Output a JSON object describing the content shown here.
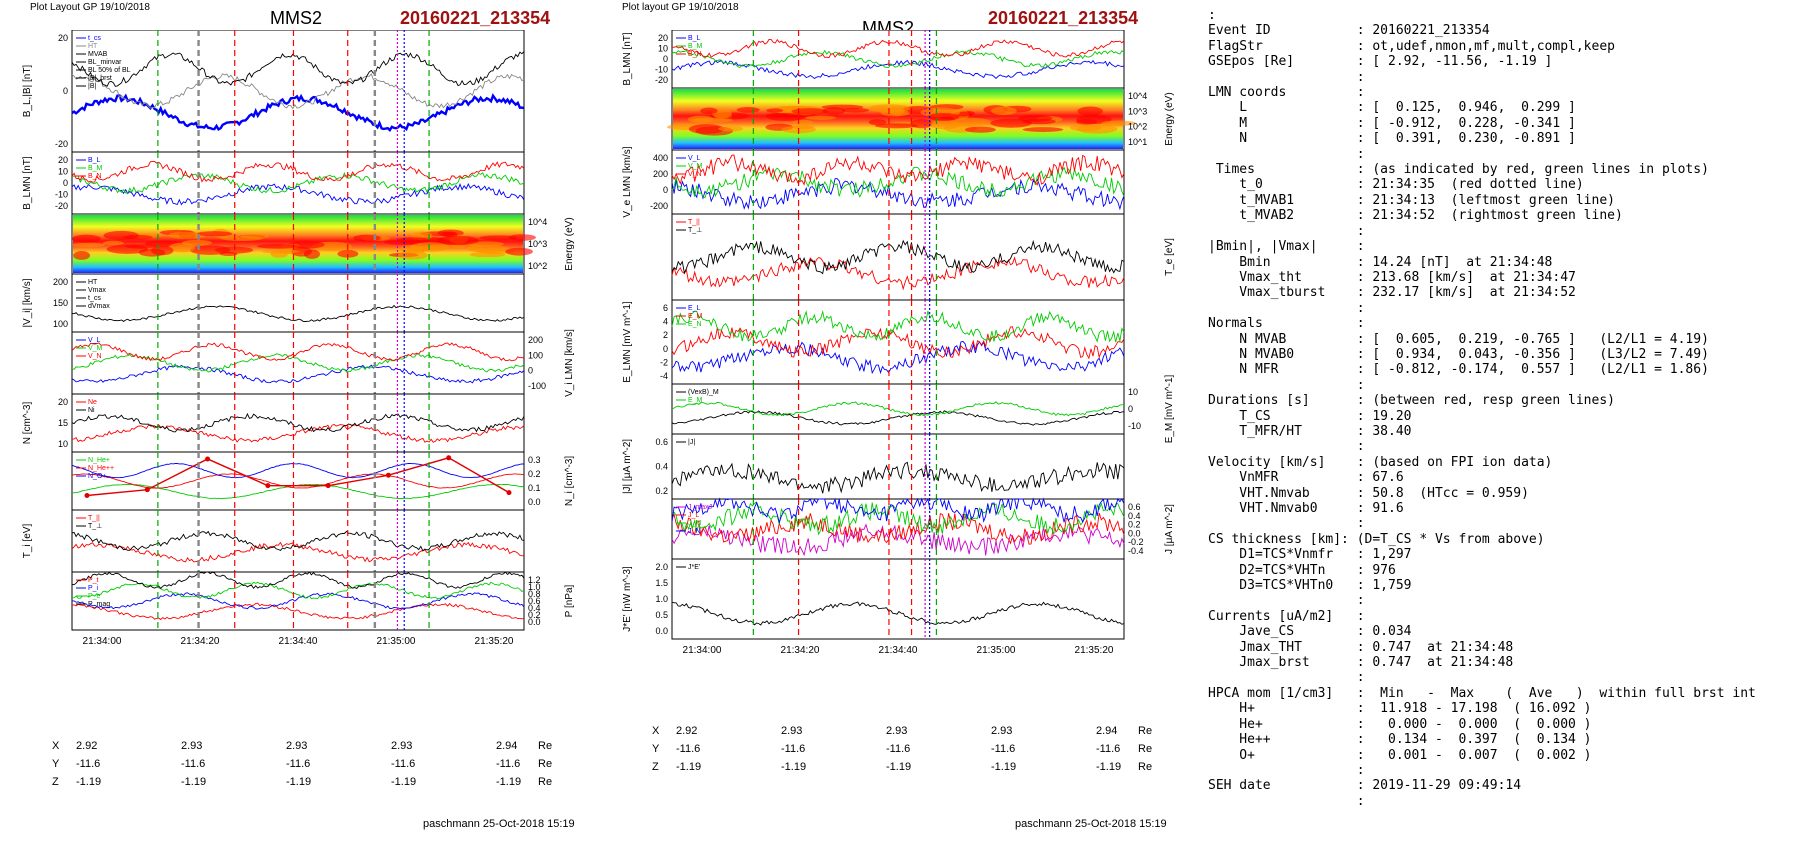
{
  "left_plot": {
    "layout_label": "Plot Layout GP 19/10/2018",
    "title": "MMS2",
    "event": "20160221_213354",
    "footer": "paschmann 25-Oct-2018 15:19",
    "time_ticks": [
      "21:34:00",
      "21:34:20",
      "21:34:40",
      "21:35:00",
      "21:35:20"
    ],
    "position": {
      "rows": [
        {
          "label": "X",
          "values": [
            "2.92",
            "2.93",
            "2.93",
            "2.93",
            "2.94"
          ],
          "unit": "Re"
        },
        {
          "label": "Y",
          "values": [
            "-11.6",
            "-11.6",
            "-11.6",
            "-11.6",
            "-11.6"
          ],
          "unit": "Re"
        },
        {
          "label": "Z",
          "values": [
            "-1.19",
            "-1.19",
            "-1.19",
            "-1.19",
            "-1.19"
          ],
          "unit": "Re"
        }
      ]
    },
    "panels": [
      {
        "ylabel": "B_L,|B| [nT]",
        "ticks": [
          "20",
          "0",
          "-20"
        ],
        "legend": [
          "t_cs",
          "HT",
          "MVAB",
          "BL_minvar",
          "BL 50% of BL",
          "|B|_brst",
          "|B|"
        ]
      },
      {
        "ylabel": "B_LMN [nT]",
        "ticks": [
          "20",
          "10",
          "0",
          "-10",
          "-20"
        ],
        "legend": [
          "B_L",
          "B_M",
          "B_N"
        ]
      },
      {
        "ylabel": "Energy (eV)",
        "ticks": [
          "10^4",
          "10^3",
          "10^2"
        ]
      },
      {
        "ylabel": "|V_i| [km/s]",
        "ticks": [
          "200",
          "150",
          "100"
        ],
        "legend": [
          "HT",
          "Vmax",
          "t_cs",
          "dVmax"
        ]
      },
      {
        "ylabel": "V_i LMN [km/s]",
        "ticks": [
          "200",
          "100",
          "0",
          "-100"
        ],
        "legend": [
          "V_L",
          "V_M",
          "V_N"
        ]
      },
      {
        "ylabel": "N [cm^-3]",
        "ticks": [
          "20",
          "15",
          "10"
        ],
        "legend": [
          "Ne",
          "Ni"
        ]
      },
      {
        "ylabel": "N_i [cm^-3]",
        "ticks": [
          "0.3",
          "0.2",
          "0.1",
          "0.0"
        ],
        "legend": [
          "N_He+",
          "N_He++",
          "N_O+"
        ]
      },
      {
        "ylabel": "T_i [eV]",
        "ticks": [],
        "legend": [
          "T_||",
          "T_⊥"
        ]
      },
      {
        "ylabel": "P [nPa]",
        "ticks": [
          "1.2",
          "1.0",
          "0.8",
          "0.6",
          "0.4",
          "0.2",
          "0.0"
        ],
        "legend": [
          "P_t",
          "P_i",
          "P_e",
          "P_mag"
        ]
      }
    ]
  },
  "right_plot": {
    "layout_label": "Plot layout GP 19/10/2018",
    "title": "MMS2",
    "event": "20160221_213354",
    "footer": "paschmann 25-Oct-2018 15:19",
    "time_ticks": [
      "21:34:00",
      "21:34:20",
      "21:34:40",
      "21:35:00",
      "21:35:20"
    ],
    "position": {
      "rows": [
        {
          "label": "X",
          "values": [
            "2.92",
            "2.93",
            "2.93",
            "2.93",
            "2.94"
          ],
          "unit": "Re"
        },
        {
          "label": "Y",
          "values": [
            "-11.6",
            "-11.6",
            "-11.6",
            "-11.6",
            "-11.6"
          ],
          "unit": "Re"
        },
        {
          "label": "Z",
          "values": [
            "-1.19",
            "-1.19",
            "-1.19",
            "-1.19",
            "-1.19"
          ],
          "unit": "Re"
        }
      ]
    },
    "panels": [
      {
        "ylabel": "B_LMN [nT]",
        "ticks": [
          "20",
          "10",
          "0",
          "-10",
          "-20"
        ],
        "legend": [
          "B_L",
          "B_M",
          "B_N"
        ]
      },
      {
        "ylabel": "Energy (eV)",
        "ticks": [
          "10^4",
          "10^3",
          "10^2",
          "10^1"
        ]
      },
      {
        "ylabel": "V_e LMN [km/s]",
        "ticks": [
          "400",
          "200",
          "0",
          "-200"
        ],
        "legend": [
          "V_L",
          "V_M",
          "V_N"
        ]
      },
      {
        "ylabel": "T_e [eV]",
        "ticks": [],
        "legend": [
          "T_||",
          "T_⊥"
        ]
      },
      {
        "ylabel": "E_LMN [mV m^-1]",
        "ticks": [
          "6",
          "4",
          "2",
          "0",
          "-2",
          "-4"
        ],
        "legend": [
          "E_L",
          "E_M",
          "E_N"
        ]
      },
      {
        "ylabel": "E_M [mV m^-1]",
        "ticks": [
          "10",
          "0",
          "-10"
        ],
        "legend": [
          "(VexB)_M",
          "E_M"
        ]
      },
      {
        "ylabel": "|J| [μA m^-2]",
        "ticks": [
          "0.6",
          "0.4",
          "0.2"
        ],
        "legend": [
          "|J|"
        ]
      },
      {
        "ylabel": "J [μA m^-2]",
        "ticks": [
          "0.6",
          "0.4",
          "0.2",
          "0.0",
          "-0.2",
          "-0.4"
        ],
        "legend": [
          "J_maxJ",
          "J_L",
          "J_M",
          "J_N"
        ]
      },
      {
        "ylabel": "J*E' [nW m^-3]",
        "ticks": [
          "2.0",
          "1.5",
          "1.0",
          "0.5",
          "0.0"
        ],
        "legend": [
          "J*E'"
        ]
      }
    ]
  },
  "summary_text": [
    ":",
    "Event ID           : 20160221_213354",
    "FlagStr            : ot,udef,nmon,mf,mult,compl,keep",
    "GSEpos [Re]        : [ 2.92, -11.56, -1.19 ]",
    "                   :",
    "LMN coords         :",
    "    L              : [  0.125,  0.946,  0.299 ]",
    "    M              : [ -0.912,  0.228, -0.341 ]",
    "    N              : [  0.391,  0.230, -0.891 ]",
    "                   :",
    " Times             : (as indicated by red, green lines in plots)",
    "    t_0            : 21:34:35  (red dotted line)",
    "    t_MVAB1        : 21:34:13  (leftmost green line)",
    "    t_MVAB2        : 21:34:52  (rightmost green line)",
    "                   :",
    "|Bmin|, |Vmax|     :",
    "    Bmin           : 14.24 [nT]  at 21:34:48",
    "    Vmax_tht       : 213.68 [km/s]  at 21:34:47",
    "    Vmax_tburst    : 232.17 [km/s]  at 21:34:52",
    "                   :",
    "Normals            :",
    "    N MVAB         : [  0.605,  0.219, -0.765 ]   (L2/L1 = 4.19)",
    "    N MVAB0        : [  0.934,  0.043, -0.356 ]   (L3/L2 = 7.49)",
    "    N MFR          : [ -0.812, -0.174,  0.557 ]   (L2/L1 = 1.86)",
    "                   :",
    "Durations [s]      : (between red, resp green lines)",
    "    T_CS           : 19.20",
    "    T_MFR/HT       : 38.40",
    "                   :",
    "Velocity [km/s]    : (based on FPI ion data)",
    "    VnMFR          : 67.6",
    "    VHT.Nmvab      : 50.8  (HTcc = 0.959)",
    "    VHT.Nmvab0     : 91.6",
    "                   :",
    "CS thickness [km]: (D=T_CS * Vs from above)",
    "    D1=TCS*Vnmfr   : 1,297",
    "    D2=TCS*VHTn    : 976",
    "    D3=TCS*VHTn0   : 1,759",
    "                   :",
    "Currents [uA/m2]   :",
    "    Jave_CS        : 0.034",
    "    Jmax_THT       : 0.747  at 21:34:48",
    "    Jmax_brst      : 0.747  at 21:34:48",
    "                   :",
    "HPCA mom [1/cm3]   :  Min   -  Max    (  Ave   )  within full brst int",
    "    H+             :  11.918 - 17.198  ( 16.092 )",
    "    He+            :   0.000 -  0.000  (  0.000 )",
    "    He++           :   0.134 -  0.397  (  0.134 )",
    "    O+             :   0.001 -  0.007  (  0.002 )",
    "                   :",
    "SEH date           : 2019-11-29 09:49:14",
    "                   :"
  ],
  "colors": {
    "event": "#a01010",
    "red": "#ff0000",
    "green": "#00cc00",
    "blue": "#0000ff",
    "magenta": "#cc00cc",
    "gray": "#888888"
  }
}
